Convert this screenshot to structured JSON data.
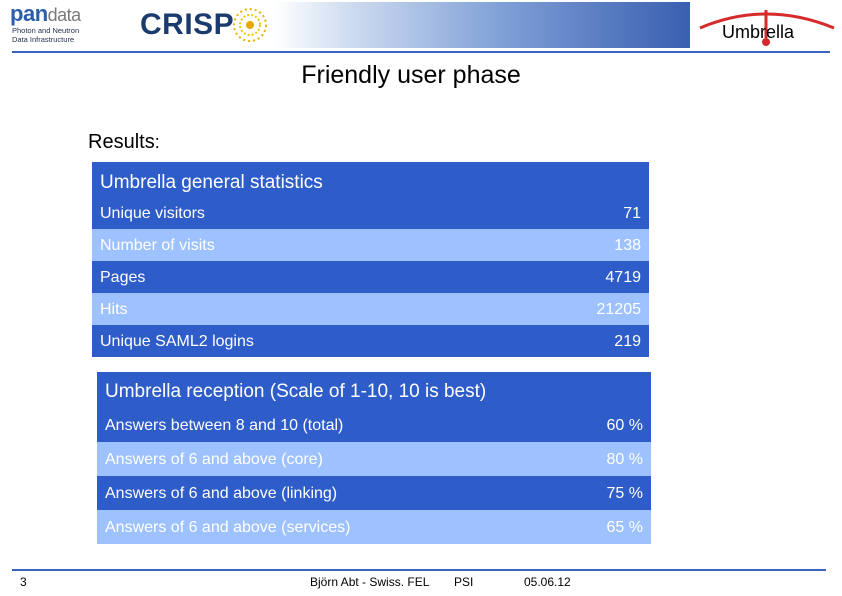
{
  "header": {
    "pandata": {
      "logo_parts": [
        "pa",
        "n",
        "data"
      ],
      "sub_lines": [
        "Photon and Neutron",
        "Data Infrastructure"
      ]
    },
    "crisp": {
      "logo_text": "CRISP"
    },
    "umbrella": {
      "label": "Umbrella"
    },
    "colors": {
      "band": "#3a5fb0",
      "rule": "#3a64c0",
      "umbrella_arc": "#d62b2b"
    }
  },
  "title": "Friendly user phase",
  "results": {
    "label": "Results",
    "colon": ":"
  },
  "general_stats": {
    "title": "Umbrella general statistics",
    "rows": [
      {
        "label": "Unique visitors",
        "value": "71"
      },
      {
        "label": "Number of visits",
        "value": "138"
      },
      {
        "label": "Pages",
        "value": "4719"
      },
      {
        "label": "Hits",
        "value": "21205"
      },
      {
        "label": "Unique SAML2 logins",
        "value": "219"
      }
    ]
  },
  "reception": {
    "title": "Umbrella reception (Scale of 1-10, 10 is best)",
    "rows": [
      {
        "label": "Answers between 8 and 10 (total)",
        "value": "60 %"
      },
      {
        "label": "Answers of 6 and above (core)",
        "value": "80 %"
      },
      {
        "label": "Answers of 6 and above (linking)",
        "value": "75 %"
      },
      {
        "label": "Answers of 6 and above (services)",
        "value": "65 %"
      }
    ]
  },
  "table_colors": {
    "dark": "#2e5cc8",
    "light": "#9ec2ff"
  },
  "footer": {
    "page_number": "3",
    "author": "Björn Abt - Swiss. FEL",
    "org": "PSI",
    "date": "05.06.12"
  }
}
